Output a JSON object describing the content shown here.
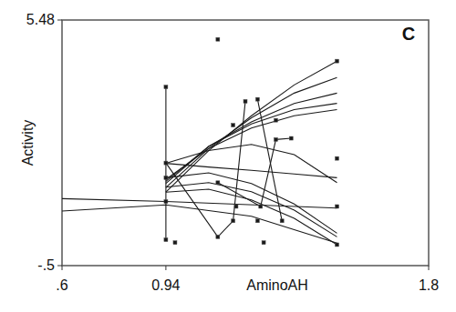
{
  "chart_data": {
    "type": "line",
    "annotation": "C",
    "x_label": "AminoAH",
    "y_label": "Activity",
    "xlim": [
      0.6,
      1.8
    ],
    "ylim": [
      -0.5,
      5.48
    ],
    "xticks": [
      {
        "value": 0.6,
        "label": ".6"
      },
      0.94,
      1.8
    ],
    "yticks": [
      {
        "value": -0.5,
        "label": "-.5"
      },
      5.48
    ],
    "grid": false,
    "tick_labels": true,
    "series": [
      {
        "type": "line",
        "color": "#1a1a1a",
        "marker": "none",
        "line_style": "solid",
        "x": [
          0.94,
          1.08,
          1.22,
          1.36,
          1.5
        ],
        "values": [
          1.29,
          2.3,
          3.15,
          3.9,
          4.48
        ]
      },
      {
        "type": "line",
        "color": "#1a1a1a",
        "marker": "none",
        "line_style": "solid",
        "x": [
          0.94,
          1.08,
          1.22,
          1.36,
          1.5
        ],
        "values": [
          1.4,
          2.35,
          3.1,
          3.7,
          4.08
        ]
      },
      {
        "type": "line",
        "color": "#1a1a1a",
        "marker": "none",
        "line_style": "solid",
        "x": [
          0.94,
          1.08,
          1.22,
          1.36,
          1.5
        ],
        "values": [
          1.5,
          2.4,
          3.0,
          3.45,
          3.7
        ]
      },
      {
        "type": "line",
        "color": "#1a1a1a",
        "marker": "none",
        "line_style": "solid",
        "x": [
          0.94,
          1.08,
          1.22,
          1.36,
          1.5
        ],
        "values": [
          1.55,
          2.4,
          2.95,
          3.3,
          3.45
        ]
      },
      {
        "type": "line",
        "color": "#1a1a1a",
        "marker": "none",
        "line_style": "solid",
        "x": [
          0.94,
          1.08,
          1.22,
          1.36,
          1.5
        ],
        "values": [
          1.6,
          2.35,
          2.85,
          3.15,
          3.3
        ]
      },
      {
        "type": "line",
        "color": "#1a1a1a",
        "marker": "none",
        "line_style": "solid",
        "x": [
          0.94,
          1.08,
          1.22,
          1.36,
          1.5
        ],
        "values": [
          1.99,
          2.3,
          2.45,
          2.2,
          1.52
        ]
      },
      {
        "type": "line",
        "color": "#1a1a1a",
        "marker": "none",
        "line_style": "solid",
        "x": [
          0.94,
          1.08,
          1.22,
          1.36,
          1.5
        ],
        "values": [
          1.99,
          1.9,
          1.82,
          1.73,
          1.64
        ]
      },
      {
        "type": "line",
        "color": "#1a1a1a",
        "marker": "none",
        "line_style": "solid",
        "x": [
          0.94,
          1.08,
          1.22,
          1.36,
          1.5
        ],
        "values": [
          1.64,
          1.76,
          1.5,
          1.0,
          0.29
        ]
      },
      {
        "type": "line",
        "color": "#1a1a1a",
        "marker": "none",
        "line_style": "solid",
        "x": [
          0.94,
          1.08,
          1.22,
          1.36,
          1.5
        ],
        "values": [
          1.41,
          1.52,
          1.3,
          0.85,
          0.2
        ]
      },
      {
        "type": "line",
        "color": "#1a1a1a",
        "marker": "none",
        "line_style": "solid",
        "x": [
          0.94,
          1.08,
          1.22,
          1.36,
          1.5
        ],
        "values": [
          1.29,
          1.36,
          1.1,
          0.65,
          0.01
        ]
      },
      {
        "type": "line",
        "color": "#1a1a1a",
        "marker": "none",
        "line_style": "solid",
        "x": [
          0.6,
          0.94,
          1.22,
          1.5
        ],
        "values": [
          0.83,
          0.98,
          0.7,
          0.05
        ]
      },
      {
        "type": "line",
        "color": "#1a1a1a",
        "marker": "none",
        "line_style": "solid",
        "x": [
          0.6,
          0.94,
          1.5
        ],
        "values": [
          1.13,
          1.06,
          0.9
        ]
      },
      {
        "type": "line",
        "color": "#1a1a1a",
        "marker": "square",
        "line_style": "solid",
        "x": [
          0.94,
          0.94
        ],
        "values": [
          3.85,
          0.13
        ]
      },
      {
        "type": "line",
        "color": "#1a1a1a",
        "marker": "square",
        "line_style": "solid",
        "x": [
          0.94,
          1.11,
          1.16,
          1.2
        ],
        "values": [
          2.0,
          0.2,
          0.59,
          3.5
        ]
      },
      {
        "type": "line",
        "color": "#1a1a1a",
        "marker": "square",
        "line_style": "solid",
        "x": [
          1.11,
          1.25,
          1.3,
          1.35
        ],
        "values": [
          1.52,
          0.94,
          2.57,
          2.6
        ]
      },
      {
        "type": "line",
        "color": "#1a1a1a",
        "marker": "square",
        "line_style": "solid",
        "x": [
          1.24,
          1.32
        ],
        "values": [
          3.55,
          0.59
        ]
      },
      {
        "type": "scatter",
        "color": "#1a1a1a",
        "marker": "square",
        "x": [
          0.94,
          0.94,
          0.97,
          1.11,
          1.16,
          1.17,
          1.26,
          1.5,
          1.5,
          1.5,
          1.5,
          1.3,
          1.24
        ],
        "values": [
          1.64,
          1.06,
          0.06,
          5.01,
          2.92,
          0.94,
          0.06,
          4.48,
          2.11,
          0.94,
          0.01,
          3.04,
          0.59
        ]
      }
    ]
  }
}
